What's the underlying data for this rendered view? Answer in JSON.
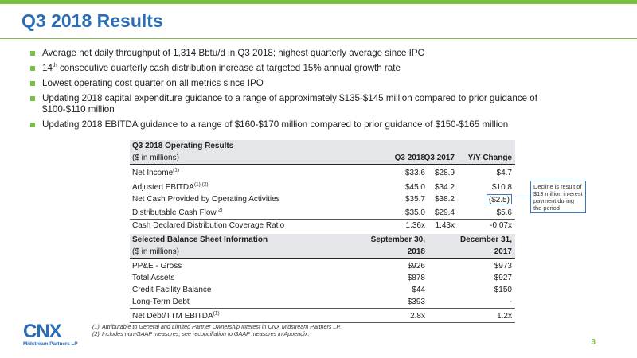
{
  "title": "Q3 2018 Results",
  "bullets": [
    {
      "pre": "Average net daily throughput of 1,314 Bbtu/d in Q3 2018; highest quarterly average since IPO",
      "sup": "",
      "post": ""
    },
    {
      "pre": "14",
      "sup": "th",
      "post": " consecutive quarterly cash distribution increase at targeted 15% annual growth rate"
    },
    {
      "pre": "Lowest operating cost quarter on all metrics since IPO",
      "sup": "",
      "post": ""
    },
    {
      "pre": "Updating 2018 capital expenditure guidance to a range of approximately $135-$145 million compared to prior guidance of $100-$110 million",
      "sup": "",
      "post": ""
    },
    {
      "pre": "Updating 2018 EBITDA guidance to a range of $160-$170 million compared to prior guidance of $150-$165 million",
      "sup": "",
      "post": ""
    }
  ],
  "operating": {
    "title": "Q3 2018 Operating Results",
    "subtitle": "($ in millions)",
    "col1": "Q3 2018",
    "col2": "Q3 2017",
    "col3": "Y/Y Change",
    "rows": [
      {
        "label": "Net Income",
        "sup": "(1)",
        "v1": "$33.6",
        "v2": "$28.9",
        "v3": "$4.7"
      },
      {
        "label": "Adjusted EBITDA",
        "sup": "(1) (2)",
        "v1": "$45.0",
        "v2": "$34.2",
        "v3": "$10.8"
      },
      {
        "label": "Net Cash Provided by Operating Activities",
        "sup": "",
        "v1": "$35.7",
        "v2": "$38.2",
        "v3": "($2.5)"
      },
      {
        "label": "Distributable Cash Flow",
        "sup": "(2)",
        "v1": "$35.0",
        "v2": "$29.4",
        "v3": "$5.6"
      },
      {
        "label": "Cash Declared Distribution Coverage Ratio",
        "sup": "",
        "v1": "1.36x",
        "v2": "1.43x",
        "v3": "-0.07x"
      }
    ]
  },
  "balance": {
    "title": "Selected Balance Sheet Information",
    "subtitle": "($ in millions)",
    "col1a": "September 30,",
    "col1b": "2018",
    "col2a": "December 31,",
    "col2b": "2017",
    "rows": [
      {
        "label": "PP&E - Gross",
        "sup": "",
        "v1": "$926",
        "v2": "$973"
      },
      {
        "label": "Total Assets",
        "sup": "",
        "v1": "$878",
        "v2": "$927"
      },
      {
        "label": "Credit Facility Balance",
        "sup": "",
        "v1": "$44",
        "v2": "$150"
      },
      {
        "label": "Long-Term Debt",
        "sup": "",
        "v1": "$393",
        "v2": "-"
      },
      {
        "label": "Net Debt/TTM EBITDA",
        "sup": "(1)",
        "v1": "2.8x",
        "v2": "1.2x"
      }
    ]
  },
  "callout": "Decline is result of $13 million interest payment during the period",
  "footnotes": [
    {
      "n": "(1)",
      "text": "Attributable to General and Limited Partner Ownership Interest in CNX Midstream Partners LP."
    },
    {
      "n": "(2)",
      "text": "Includes non-GAAP measures; see reconciliation to GAAP measures in Appendix."
    }
  ],
  "logo": {
    "name": "CNX",
    "sub": "Midstream Partners LP"
  },
  "page_number": "3",
  "colors": {
    "accent_green": "#7ac143",
    "brand_blue": "#2a6db5"
  }
}
